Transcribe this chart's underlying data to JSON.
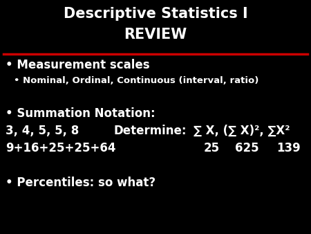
{
  "background_color": "#000000",
  "title_line1": "Descriptive Statistics I",
  "title_line2": "REVIEW",
  "title_color": "#ffffff",
  "title_fontsize": 15,
  "line_color": "#cc0000",
  "bullet1_text": "Measurement scales",
  "bullet1_color": "#ffffff",
  "bullet1_fontsize": 12,
  "subbullet1_text": "Nominal, Ordinal, Continuous (interval, ratio)",
  "subbullet1_color": "#ffffff",
  "subbullet1_fontsize": 9.5,
  "bullet2_text": "Summation Notation:",
  "bullet2_color": "#ffffff",
  "bullet2_fontsize": 12,
  "row1_left": "3, 4, 5, 5, 8",
  "row1_mid": "Determine:",
  "row1_right": "∑ X, (∑ X)², ∑X²",
  "row2_left": "9+16+25+25+64",
  "row2_val1": "25",
  "row2_val2": "625",
  "row2_val3": "139",
  "row_color": "#ffffff",
  "row_fontsize": 12,
  "bullet3_text": "Percentiles: so what?",
  "bullet3_color": "#ffffff",
  "bullet3_fontsize": 12
}
